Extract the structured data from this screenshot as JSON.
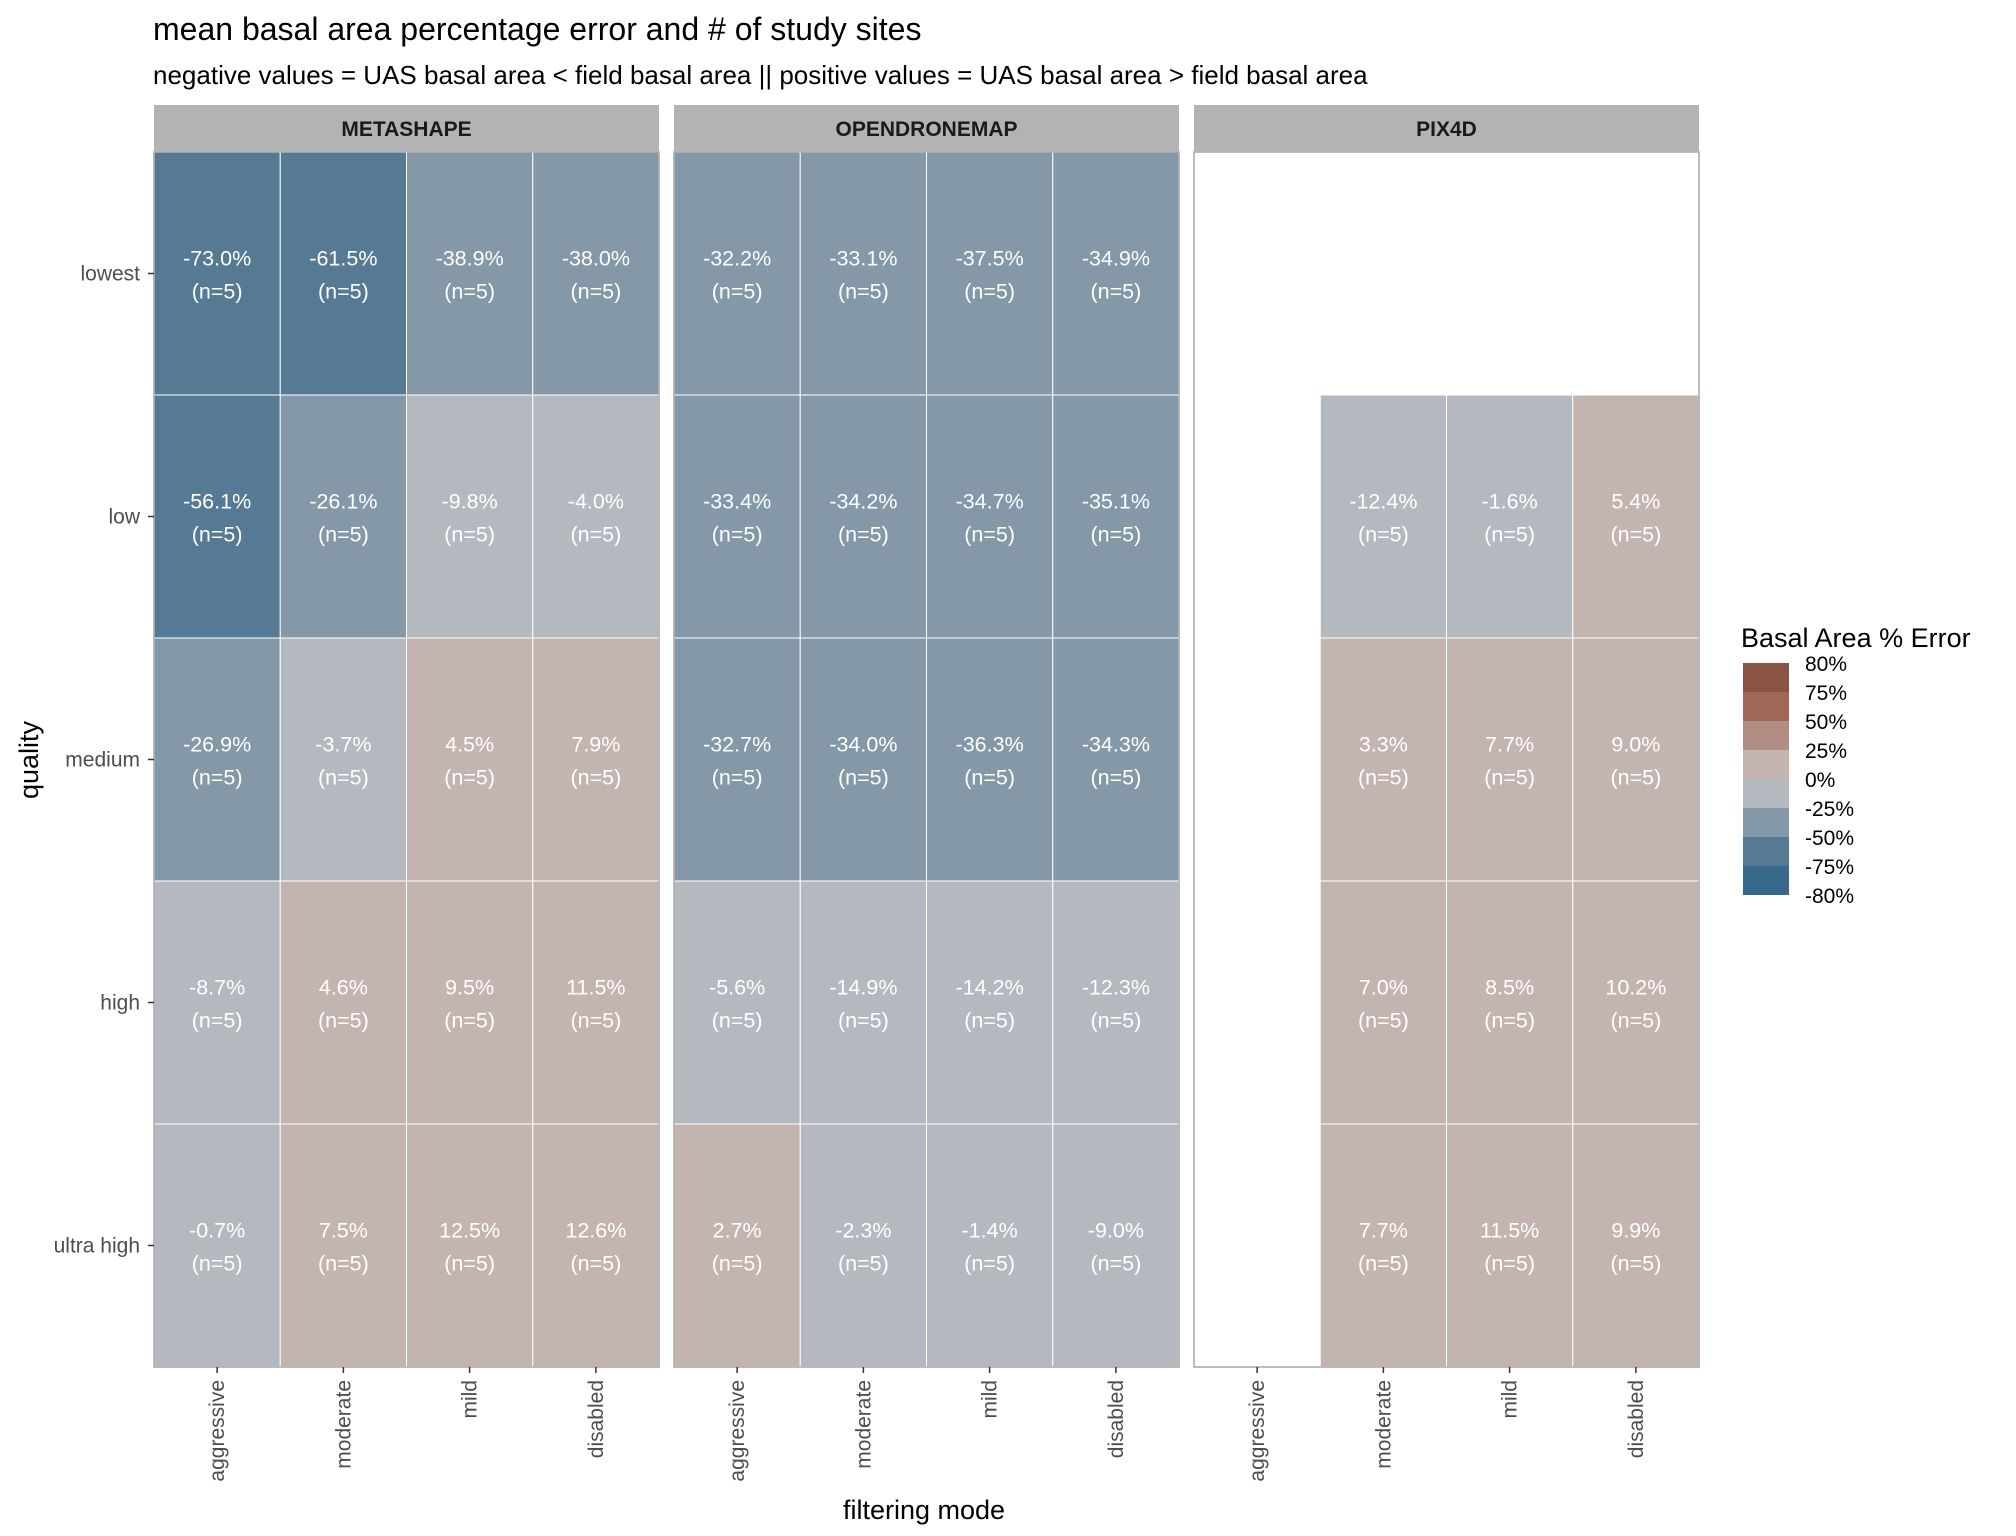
{
  "chart_data": {
    "type": "heatmap",
    "title": "mean basal area percentage error and # of study sites",
    "subtitle": "negative values = UAS basal area < field basal area  ||  positive values = UAS basal area > field basal area",
    "xlabel": "filtering mode",
    "ylabel": "quality",
    "x_categories": [
      "aggressive",
      "moderate",
      "mild",
      "disabled"
    ],
    "y_categories": [
      "lowest",
      "low",
      "medium",
      "high",
      "ultra high"
    ],
    "facets": [
      {
        "name": "METASHAPE",
        "cells": [
          [
            {
              "value": -73.0,
              "label": "-73.0%",
              "n": "(n=5)"
            },
            {
              "value": -61.5,
              "label": "-61.5%",
              "n": "(n=5)"
            },
            {
              "value": -38.9,
              "label": "-38.9%",
              "n": "(n=5)"
            },
            {
              "value": -38.0,
              "label": "-38.0%",
              "n": "(n=5)"
            }
          ],
          [
            {
              "value": -56.1,
              "label": "-56.1%",
              "n": "(n=5)"
            },
            {
              "value": -26.1,
              "label": "-26.1%",
              "n": "(n=5)"
            },
            {
              "value": -9.8,
              "label": "-9.8%",
              "n": "(n=5)"
            },
            {
              "value": -4.0,
              "label": "-4.0%",
              "n": "(n=5)"
            }
          ],
          [
            {
              "value": -26.9,
              "label": "-26.9%",
              "n": "(n=5)"
            },
            {
              "value": -3.7,
              "label": "-3.7%",
              "n": "(n=5)"
            },
            {
              "value": 4.5,
              "label": "4.5%",
              "n": "(n=5)"
            },
            {
              "value": 7.9,
              "label": "7.9%",
              "n": "(n=5)"
            }
          ],
          [
            {
              "value": -8.7,
              "label": "-8.7%",
              "n": "(n=5)"
            },
            {
              "value": 4.6,
              "label": "4.6%",
              "n": "(n=5)"
            },
            {
              "value": 9.5,
              "label": "9.5%",
              "n": "(n=5)"
            },
            {
              "value": 11.5,
              "label": "11.5%",
              "n": "(n=5)"
            }
          ],
          [
            {
              "value": -0.7,
              "label": "-0.7%",
              "n": "(n=5)"
            },
            {
              "value": 7.5,
              "label": "7.5%",
              "n": "(n=5)"
            },
            {
              "value": 12.5,
              "label": "12.5%",
              "n": "(n=5)"
            },
            {
              "value": 12.6,
              "label": "12.6%",
              "n": "(n=5)"
            }
          ]
        ]
      },
      {
        "name": "OPENDRONEMAP",
        "cells": [
          [
            {
              "value": -32.2,
              "label": "-32.2%",
              "n": "(n=5)"
            },
            {
              "value": -33.1,
              "label": "-33.1%",
              "n": "(n=5)"
            },
            {
              "value": -37.5,
              "label": "-37.5%",
              "n": "(n=5)"
            },
            {
              "value": -34.9,
              "label": "-34.9%",
              "n": "(n=5)"
            }
          ],
          [
            {
              "value": -33.4,
              "label": "-33.4%",
              "n": "(n=5)"
            },
            {
              "value": -34.2,
              "label": "-34.2%",
              "n": "(n=5)"
            },
            {
              "value": -34.7,
              "label": "-34.7%",
              "n": "(n=5)"
            },
            {
              "value": -35.1,
              "label": "-35.1%",
              "n": "(n=5)"
            }
          ],
          [
            {
              "value": -32.7,
              "label": "-32.7%",
              "n": "(n=5)"
            },
            {
              "value": -34.0,
              "label": "-34.0%",
              "n": "(n=5)"
            },
            {
              "value": -36.3,
              "label": "-36.3%",
              "n": "(n=5)"
            },
            {
              "value": -34.3,
              "label": "-34.3%",
              "n": "(n=5)"
            }
          ],
          [
            {
              "value": -5.6,
              "label": "-5.6%",
              "n": "(n=5)"
            },
            {
              "value": -14.9,
              "label": "-14.9%",
              "n": "(n=5)"
            },
            {
              "value": -14.2,
              "label": "-14.2%",
              "n": "(n=5)"
            },
            {
              "value": -12.3,
              "label": "-12.3%",
              "n": "(n=5)"
            }
          ],
          [
            {
              "value": 2.7,
              "label": "2.7%",
              "n": "(n=5)"
            },
            {
              "value": -2.3,
              "label": "-2.3%",
              "n": "(n=5)"
            },
            {
              "value": -1.4,
              "label": "-1.4%",
              "n": "(n=5)"
            },
            {
              "value": -9.0,
              "label": "-9.0%",
              "n": "(n=5)"
            }
          ]
        ]
      },
      {
        "name": "PIX4D",
        "cells": [
          [
            null,
            null,
            null,
            null
          ],
          [
            null,
            {
              "value": -12.4,
              "label": "-12.4%",
              "n": "(n=5)"
            },
            {
              "value": -1.6,
              "label": "-1.6%",
              "n": "(n=5)"
            },
            {
              "value": 5.4,
              "label": "5.4%",
              "n": "(n=5)"
            }
          ],
          [
            null,
            {
              "value": 3.3,
              "label": "3.3%",
              "n": "(n=5)"
            },
            {
              "value": 7.7,
              "label": "7.7%",
              "n": "(n=5)"
            },
            {
              "value": 9.0,
              "label": "9.0%",
              "n": "(n=5)"
            }
          ],
          [
            null,
            {
              "value": 7.0,
              "label": "7.0%",
              "n": "(n=5)"
            },
            {
              "value": 8.5,
              "label": "8.5%",
              "n": "(n=5)"
            },
            {
              "value": 10.2,
              "label": "10.2%",
              "n": "(n=5)"
            }
          ],
          [
            null,
            {
              "value": 7.7,
              "label": "7.7%",
              "n": "(n=5)"
            },
            {
              "value": 11.5,
              "label": "11.5%",
              "n": "(n=5)"
            },
            {
              "value": 9.9,
              "label": "9.9%",
              "n": "(n=5)"
            }
          ]
        ]
      }
    ],
    "legend": {
      "title": "Basal Area % Error",
      "placement": "right",
      "bins": [
        {
          "label": "80%",
          "color": "#8a5444"
        },
        {
          "label": "75%",
          "color": "#a06858"
        },
        {
          "label": "50%",
          "color": "#b28d83"
        },
        {
          "label": "25%",
          "color": "#c4b4b0"
        },
        {
          "label": "0%",
          "color": "#b4b9bf"
        },
        {
          "label": "-25%",
          "color": "#8498a8"
        },
        {
          "label": "-50%",
          "color": "#577a94"
        },
        {
          "label": "-75%",
          "color": "#376a8a"
        },
        {
          "label": "-80%",
          "color": ""
        }
      ]
    },
    "colors": {
      "pos_0_25": "#c4b4b0",
      "neg_0_25": "#b4b9bf",
      "neg_25_50": "#8498a8",
      "neg_50_75": "#577a94",
      "neg_75_up": "#4a7591",
      "strip": "#b3b3b3",
      "panel_border": "#b3b3b3",
      "gridline": "#ffffff"
    }
  }
}
